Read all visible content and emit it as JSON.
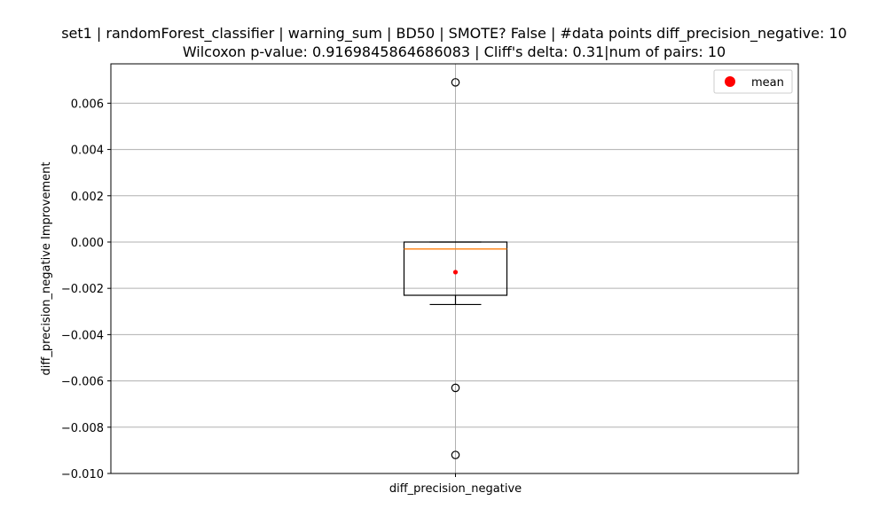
{
  "chart_data": {
    "type": "box",
    "title_line1": "set1 | randomForest_classifier | warning_sum | BD50 | SMOTE? False | #data points diff_precision_negative: 10",
    "title_line2": "Wilcoxon p-value: 0.9169845864686083 | Cliff's delta: 0.31|num of pairs: 10",
    "xlabel": "",
    "ylabel": "diff_precision_negative Improvement",
    "categories": [
      "diff_precision_negative"
    ],
    "ylim": [
      -0.01,
      0.0077
    ],
    "yticks": [
      -0.01,
      -0.008,
      -0.006,
      -0.004,
      -0.002,
      0.0,
      0.002,
      0.004,
      0.006
    ],
    "ytick_labels": [
      "−0.010",
      "−0.008",
      "−0.006",
      "−0.004",
      "−0.002",
      "0.000",
      "0.002",
      "0.004",
      "0.006"
    ],
    "grid": true,
    "box": {
      "q1": -0.0023,
      "median": -0.0003,
      "q3": 0.0,
      "whisker_low": -0.0027,
      "whisker_high": 0.0,
      "mean": -0.0013,
      "outliers": [
        0.0069,
        -0.0063,
        -0.0092
      ]
    },
    "legend": {
      "label": "mean",
      "placement": "top-right"
    },
    "colors": {
      "box": "#000000",
      "median": "#ff7f0e",
      "mean": "#ff0000",
      "grid": "#b0b0b0",
      "outlier": "#000000"
    }
  }
}
